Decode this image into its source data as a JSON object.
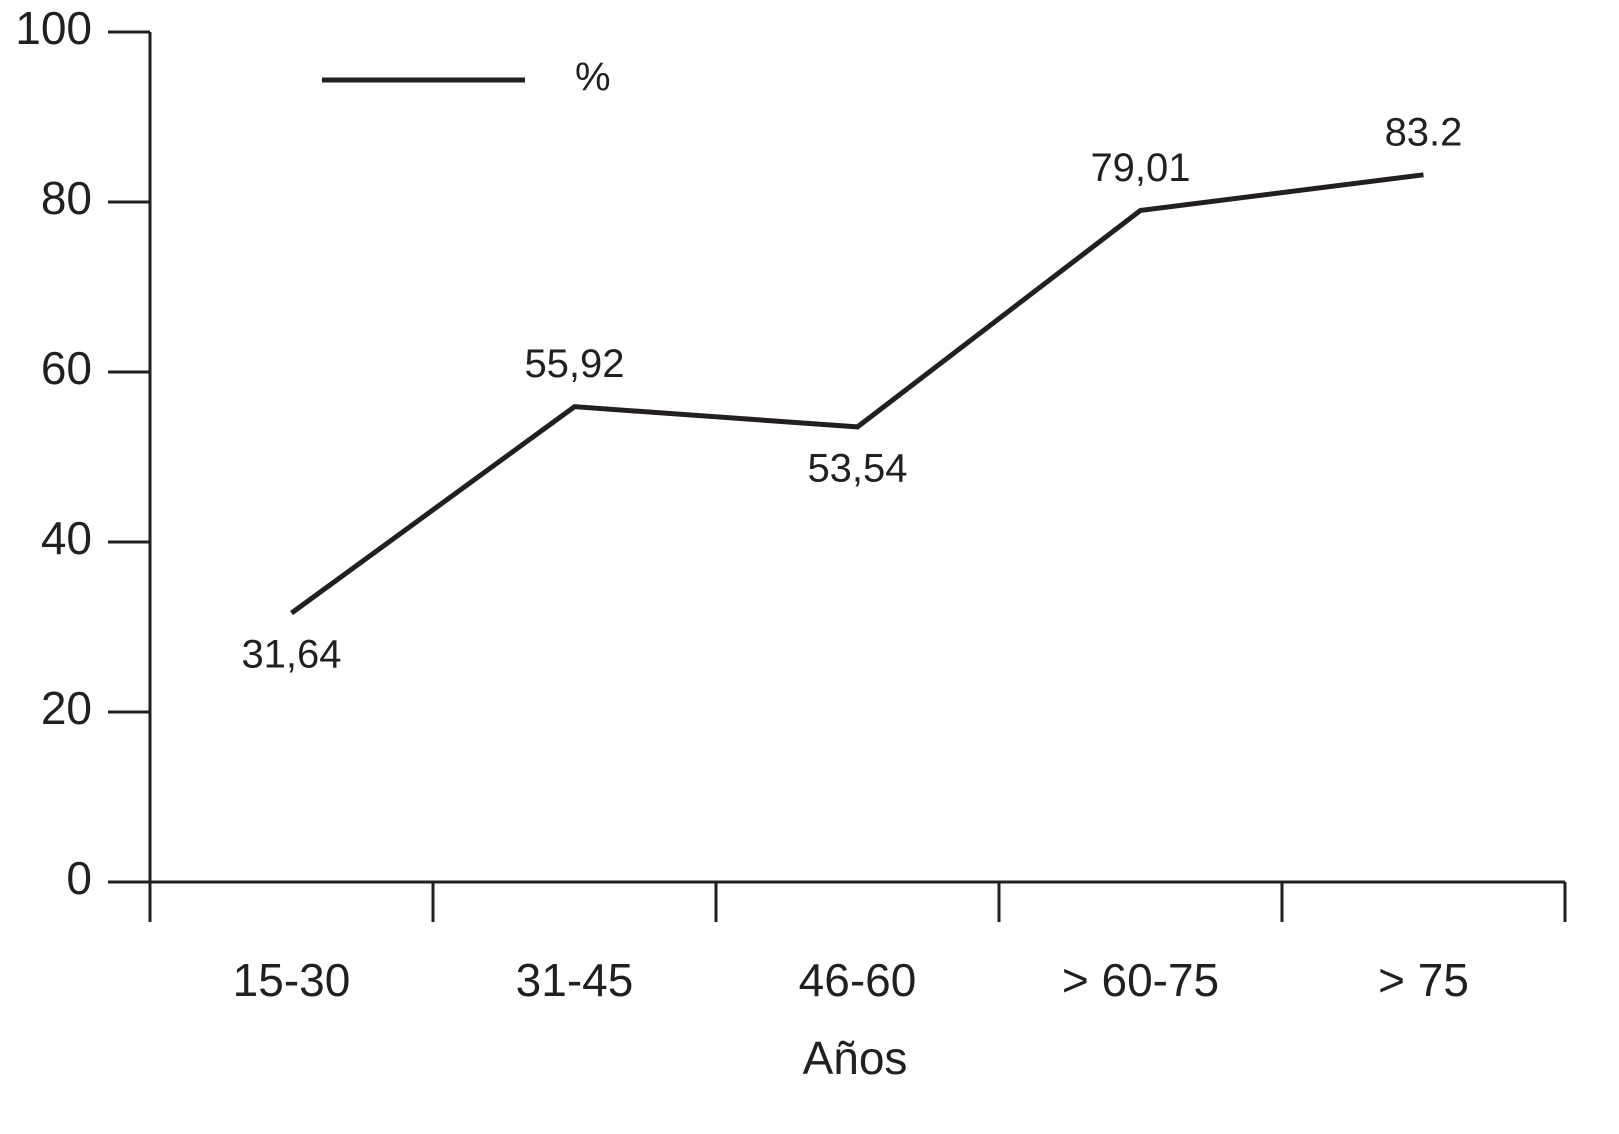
{
  "chart_data": {
    "type": "line",
    "x_label": "Años",
    "categories": [
      "15-30",
      "31-45",
      "46-60",
      "> 60-75",
      "> 75"
    ],
    "series": [
      {
        "name": "%",
        "color": "#231f20",
        "values": [
          31.64,
          55.92,
          53.54,
          79.01,
          83.2
        ],
        "value_labels": [
          "31,64",
          "55,92",
          "53,54",
          "79,01",
          "83.2"
        ]
      }
    ],
    "ylim": [
      0,
      100
    ],
    "yticks": [
      0,
      20,
      40,
      60,
      80,
      100
    ],
    "legend": "top-left"
  }
}
